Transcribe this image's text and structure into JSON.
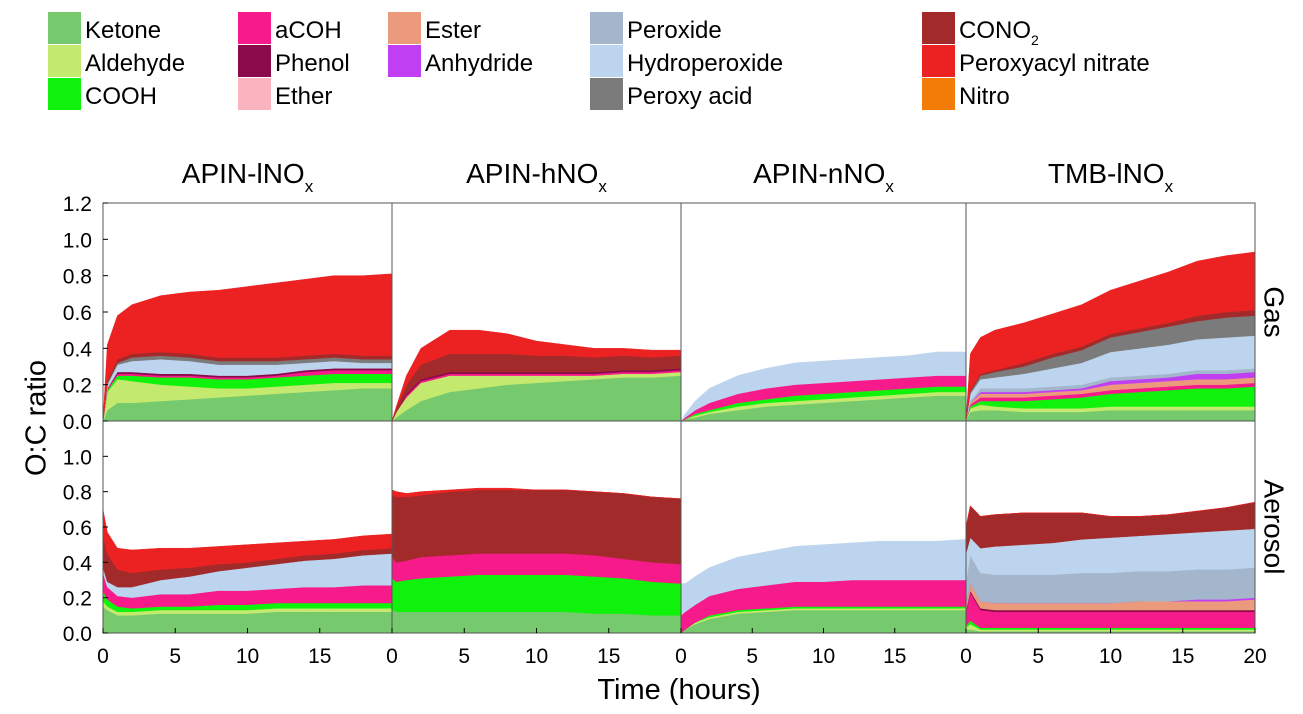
{
  "chart_data": {
    "type": "area",
    "x_label": "Time (hours)",
    "y_label": "O:C ratio",
    "x_range": [
      0,
      20
    ],
    "y_range": [
      0,
      1.2
    ],
    "x_ticks": [
      "0",
      "5",
      "10",
      "15",
      "20"
    ],
    "y_ticks": [
      "0.0",
      "0.2",
      "0.4",
      "0.6",
      "0.8",
      "1.0",
      "1.2"
    ],
    "columns": [
      {
        "main": "APIN-lNO",
        "sub": "x"
      },
      {
        "main": "APIN-hNO",
        "sub": "x"
      },
      {
        "main": "APIN-nNO",
        "sub": "x"
      },
      {
        "main": "TMB-lNO",
        "sub": "x"
      }
    ],
    "rows": [
      "Gas",
      "Aerosol"
    ],
    "legend": [
      {
        "label": "Ketone",
        "sub": "",
        "color": "#77c96d"
      },
      {
        "label": "Aldehyde",
        "sub": "",
        "color": "#c3ea6e"
      },
      {
        "label": "COOH",
        "sub": "",
        "color": "#0ff20b"
      },
      {
        "label": "aCOH",
        "sub": "",
        "color": "#f71a8a"
      },
      {
        "label": "Phenol",
        "sub": "",
        "color": "#8b0a4c"
      },
      {
        "label": "Ether",
        "sub": "",
        "color": "#fbb3c0"
      },
      {
        "label": "Ester",
        "sub": "",
        "color": "#ec9a7c"
      },
      {
        "label": "Anhydride",
        "sub": "",
        "color": "#c13ff3"
      },
      {
        "label": "Peroxide",
        "sub": "",
        "color": "#a3b6cc"
      },
      {
        "label": "Hydroperoxide",
        "sub": "",
        "color": "#bcd4ee"
      },
      {
        "label": "Peroxy acid",
        "sub": "",
        "color": "#7b7b7b"
      },
      {
        "label": "CONO",
        "sub": "2",
        "color": "#a32a2a"
      },
      {
        "label": "Peroxyacyl nitrate",
        "sub": "",
        "color": "#ec2222"
      },
      {
        "label": "Nitro",
        "sub": "",
        "color": "#f27c07"
      }
    ],
    "time": [
      0,
      0.3,
      1,
      2,
      4,
      6,
      8,
      10,
      12,
      14,
      16,
      18,
      20
    ],
    "panels": [
      {
        "column": "APIN-lNO",
        "row": "Gas",
        "layers": {
          "Ketone": [
            0,
            0.06,
            0.1,
            0.1,
            0.11,
            0.12,
            0.13,
            0.14,
            0.15,
            0.16,
            0.17,
            0.18,
            0.18
          ],
          "Aldehyde": [
            0,
            0.1,
            0.13,
            0.12,
            0.09,
            0.07,
            0.05,
            0.04,
            0.04,
            0.04,
            0.04,
            0.03,
            0.03
          ],
          "COOH": [
            0,
            0.01,
            0.02,
            0.03,
            0.04,
            0.05,
            0.05,
            0.05,
            0.05,
            0.05,
            0.05,
            0.05,
            0.05
          ],
          "aCOH": [
            0,
            0.01,
            0.01,
            0.01,
            0.01,
            0.01,
            0.01,
            0.01,
            0.01,
            0.02,
            0.02,
            0.02,
            0.02
          ],
          "Phenol": [
            0,
            0,
            0.01,
            0.01,
            0.01,
            0.01,
            0.01,
            0.01,
            0.01,
            0.01,
            0.01,
            0.01,
            0.01
          ],
          "Hydroperoxide": [
            0,
            0.02,
            0.04,
            0.06,
            0.08,
            0.07,
            0.06,
            0.06,
            0.05,
            0.04,
            0.04,
            0.03,
            0.03
          ],
          "Peroxy acid": [
            0,
            0.01,
            0.01,
            0.02,
            0.02,
            0.02,
            0.02,
            0.02,
            0.02,
            0.02,
            0.02,
            0.02,
            0.02
          ],
          "CONO2": [
            0,
            0.01,
            0.02,
            0.02,
            0.02,
            0.02,
            0.02,
            0.02,
            0.02,
            0.02,
            0.02,
            0.02,
            0.02
          ],
          "Peroxyacyl nitrate": [
            0,
            0.2,
            0.24,
            0.27,
            0.31,
            0.34,
            0.37,
            0.39,
            0.41,
            0.42,
            0.43,
            0.44,
            0.45
          ]
        }
      },
      {
        "column": "APIN-hNO",
        "row": "Gas",
        "layers": {
          "Ketone": [
            0,
            0.02,
            0.06,
            0.11,
            0.16,
            0.18,
            0.2,
            0.21,
            0.22,
            0.23,
            0.24,
            0.24,
            0.25
          ],
          "Aldehyde": [
            0,
            0.03,
            0.07,
            0.1,
            0.09,
            0.07,
            0.05,
            0.04,
            0.03,
            0.02,
            0.02,
            0.02,
            0.02
          ],
          "aCOH": [
            0,
            0.0,
            0.01,
            0.01,
            0.01,
            0.01,
            0.01,
            0.01,
            0.01,
            0.01,
            0.01,
            0.01,
            0.01
          ],
          "Phenol": [
            0,
            0.0,
            0.01,
            0.01,
            0.01,
            0.01,
            0.01,
            0.01,
            0.01,
            0.01,
            0.01,
            0.01,
            0.01
          ],
          "CONO2": [
            0,
            0.02,
            0.05,
            0.08,
            0.1,
            0.1,
            0.1,
            0.09,
            0.09,
            0.08,
            0.08,
            0.07,
            0.07
          ],
          "Peroxyacyl nitrate": [
            0,
            0.01,
            0.05,
            0.09,
            0.13,
            0.13,
            0.11,
            0.08,
            0.06,
            0.05,
            0.04,
            0.04,
            0.03
          ]
        }
      },
      {
        "column": "APIN-nNO",
        "row": "Gas",
        "layers": {
          "Ketone": [
            0,
            0.01,
            0.02,
            0.04,
            0.06,
            0.08,
            0.09,
            0.1,
            0.11,
            0.12,
            0.13,
            0.14,
            0.14
          ],
          "Aldehyde": [
            0,
            0.0,
            0.01,
            0.01,
            0.02,
            0.02,
            0.02,
            0.02,
            0.02,
            0.02,
            0.02,
            0.02,
            0.02
          ],
          "COOH": [
            0,
            0.0,
            0.01,
            0.01,
            0.02,
            0.02,
            0.03,
            0.03,
            0.03,
            0.03,
            0.03,
            0.03,
            0.03
          ],
          "aCOH": [
            0,
            0.01,
            0.02,
            0.04,
            0.05,
            0.06,
            0.06,
            0.06,
            0.06,
            0.06,
            0.06,
            0.06,
            0.06
          ],
          "Hydroperoxide": [
            0,
            0.02,
            0.05,
            0.08,
            0.1,
            0.11,
            0.12,
            0.12,
            0.12,
            0.12,
            0.12,
            0.13,
            0.13
          ]
        }
      },
      {
        "column": "TMB-lNO",
        "row": "Gas",
        "layers": {
          "Ketone": [
            0,
            0.05,
            0.06,
            0.06,
            0.05,
            0.05,
            0.05,
            0.06,
            0.06,
            0.06,
            0.06,
            0.06,
            0.06
          ],
          "Aldehyde": [
            0,
            0.02,
            0.03,
            0.02,
            0.02,
            0.02,
            0.02,
            0.02,
            0.02,
            0.02,
            0.02,
            0.02,
            0.02
          ],
          "COOH": [
            0,
            0.01,
            0.02,
            0.03,
            0.04,
            0.05,
            0.06,
            0.07,
            0.08,
            0.09,
            0.1,
            0.1,
            0.11
          ],
          "aCOH": [
            0,
            0.01,
            0.02,
            0.02,
            0.02,
            0.02,
            0.02,
            0.02,
            0.02,
            0.02,
            0.02,
            0.02,
            0.02
          ],
          "Ester": [
            0,
            0.01,
            0.02,
            0.02,
            0.02,
            0.02,
            0.02,
            0.03,
            0.03,
            0.03,
            0.03,
            0.03,
            0.03
          ],
          "Anhydride": [
            0,
            0.0,
            0.01,
            0.01,
            0.01,
            0.01,
            0.01,
            0.02,
            0.02,
            0.02,
            0.03,
            0.03,
            0.03
          ],
          "Peroxide": [
            0,
            0.01,
            0.02,
            0.02,
            0.02,
            0.02,
            0.02,
            0.02,
            0.02,
            0.02,
            0.02,
            0.02,
            0.02
          ],
          "Hydroperoxide": [
            0,
            0.04,
            0.05,
            0.06,
            0.08,
            0.1,
            0.12,
            0.14,
            0.15,
            0.16,
            0.17,
            0.18,
            0.18
          ],
          "Peroxy acid": [
            0,
            0.01,
            0.02,
            0.03,
            0.04,
            0.06,
            0.07,
            0.08,
            0.09,
            0.1,
            0.1,
            0.11,
            0.11
          ],
          "CONO2": [
            0,
            0.01,
            0.01,
            0.01,
            0.02,
            0.02,
            0.02,
            0.02,
            0.02,
            0.02,
            0.03,
            0.03,
            0.03
          ],
          "Peroxyacyl nitrate": [
            0,
            0.2,
            0.2,
            0.22,
            0.22,
            0.22,
            0.23,
            0.24,
            0.26,
            0.28,
            0.3,
            0.31,
            0.32
          ]
        }
      },
      {
        "column": "APIN-lNO",
        "row": "Aerosol",
        "layers": {
          "Ketone": [
            0.15,
            0.13,
            0.1,
            0.1,
            0.11,
            0.11,
            0.11,
            0.11,
            0.12,
            0.12,
            0.12,
            0.12,
            0.12
          ],
          "Aldehyde": [
            0.03,
            0.02,
            0.02,
            0.02,
            0.02,
            0.02,
            0.02,
            0.02,
            0.02,
            0.02,
            0.02,
            0.02,
            0.02
          ],
          "COOH": [
            0.06,
            0.04,
            0.03,
            0.02,
            0.02,
            0.02,
            0.03,
            0.03,
            0.03,
            0.03,
            0.03,
            0.03,
            0.03
          ],
          "aCOH": [
            0.1,
            0.07,
            0.06,
            0.06,
            0.07,
            0.07,
            0.08,
            0.08,
            0.08,
            0.09,
            0.09,
            0.1,
            0.1
          ],
          "Hydroperoxide": [
            0.03,
            0.03,
            0.05,
            0.06,
            0.08,
            0.1,
            0.11,
            0.13,
            0.14,
            0.15,
            0.16,
            0.17,
            0.18
          ],
          "CONO2": [
            0.18,
            0.16,
            0.1,
            0.08,
            0.06,
            0.05,
            0.04,
            0.03,
            0.03,
            0.03,
            0.03,
            0.03,
            0.03
          ],
          "Peroxyacyl nitrate": [
            0.15,
            0.12,
            0.12,
            0.13,
            0.12,
            0.11,
            0.1,
            0.1,
            0.09,
            0.08,
            0.08,
            0.08,
            0.08
          ]
        }
      },
      {
        "column": "APIN-hNO",
        "row": "Aerosol",
        "layers": {
          "Ketone": [
            0.13,
            0.12,
            0.12,
            0.12,
            0.12,
            0.12,
            0.12,
            0.12,
            0.12,
            0.11,
            0.11,
            0.1,
            0.1
          ],
          "COOH": [
            0.18,
            0.17,
            0.18,
            0.19,
            0.2,
            0.21,
            0.21,
            0.21,
            0.21,
            0.21,
            0.2,
            0.19,
            0.18
          ],
          "aCOH": [
            0.12,
            0.11,
            0.11,
            0.12,
            0.12,
            0.12,
            0.12,
            0.12,
            0.12,
            0.12,
            0.11,
            0.11,
            0.11
          ],
          "CONO2": [
            0.35,
            0.37,
            0.36,
            0.35,
            0.36,
            0.36,
            0.36,
            0.36,
            0.36,
            0.36,
            0.37,
            0.37,
            0.37
          ],
          "Peroxyacyl nitrate": [
            0.03,
            0.03,
            0.02,
            0.02,
            0.01,
            0.01,
            0.01,
            0.0,
            0.0,
            0.0,
            0.0,
            0.0,
            0.0
          ]
        }
      },
      {
        "column": "APIN-nNO",
        "row": "Aerosol",
        "layers": {
          "Ketone": [
            0,
            0.02,
            0.05,
            0.08,
            0.11,
            0.12,
            0.13,
            0.13,
            0.13,
            0.13,
            0.13,
            0.13,
            0.13
          ],
          "Aldehyde": [
            0,
            0.0,
            0.01,
            0.01,
            0.01,
            0.01,
            0.01,
            0.01,
            0.01,
            0.01,
            0.01,
            0.01,
            0.01
          ],
          "COOH": [
            0,
            0.0,
            0.0,
            0.01,
            0.01,
            0.01,
            0.01,
            0.01,
            0.01,
            0.01,
            0.01,
            0.01,
            0.01
          ],
          "aCOH": [
            0.1,
            0.1,
            0.1,
            0.11,
            0.12,
            0.13,
            0.14,
            0.14,
            0.15,
            0.15,
            0.15,
            0.15,
            0.15
          ],
          "Hydroperoxide": [
            0.18,
            0.16,
            0.16,
            0.16,
            0.18,
            0.19,
            0.2,
            0.21,
            0.21,
            0.22,
            0.22,
            0.22,
            0.23
          ]
        }
      },
      {
        "column": "TMB-lNO",
        "row": "Aerosol",
        "layers": {
          "Ketone": [
            0.02,
            0.02,
            0.01,
            0.01,
            0.01,
            0.01,
            0.01,
            0.01,
            0.01,
            0.01,
            0.01,
            0.01,
            0.01
          ],
          "Aldehyde": [
            0.01,
            0.03,
            0.01,
            0.01,
            0.01,
            0.01,
            0.01,
            0.01,
            0.01,
            0.01,
            0.01,
            0.01,
            0.01
          ],
          "COOH": [
            0.01,
            0.02,
            0.01,
            0.01,
            0.01,
            0.01,
            0.01,
            0.01,
            0.01,
            0.01,
            0.01,
            0.01,
            0.01
          ],
          "aCOH": [
            0.08,
            0.16,
            0.1,
            0.09,
            0.09,
            0.09,
            0.09,
            0.09,
            0.09,
            0.09,
            0.09,
            0.09,
            0.09
          ],
          "Phenol": [
            0.01,
            0.01,
            0.01,
            0.01,
            0.01,
            0.01,
            0.01,
            0.01,
            0.01,
            0.01,
            0.01,
            0.01,
            0.01
          ],
          "Ester": [
            0.04,
            0.04,
            0.04,
            0.04,
            0.04,
            0.04,
            0.04,
            0.04,
            0.05,
            0.05,
            0.05,
            0.05,
            0.06
          ],
          "Anhydride": [
            0.0,
            0.0,
            0.0,
            0.0,
            0.0,
            0.0,
            0.0,
            0.0,
            0.0,
            0.0,
            0.01,
            0.01,
            0.01
          ],
          "Peroxide": [
            0.12,
            0.16,
            0.16,
            0.16,
            0.16,
            0.16,
            0.17,
            0.17,
            0.17,
            0.17,
            0.17,
            0.17,
            0.17
          ],
          "Hydroperoxide": [
            0.16,
            0.1,
            0.14,
            0.16,
            0.17,
            0.18,
            0.19,
            0.2,
            0.2,
            0.21,
            0.21,
            0.22,
            0.22
          ],
          "CONO2": [
            0.15,
            0.18,
            0.18,
            0.18,
            0.18,
            0.17,
            0.15,
            0.12,
            0.11,
            0.11,
            0.12,
            0.13,
            0.15
          ],
          "Peroxyacyl nitrate": [
            0.0,
            0.0,
            0.0,
            0.0,
            0.0,
            0.0,
            0.0,
            0.0,
            0.0,
            0.0,
            0.0,
            0.0,
            0.0
          ]
        }
      }
    ]
  }
}
